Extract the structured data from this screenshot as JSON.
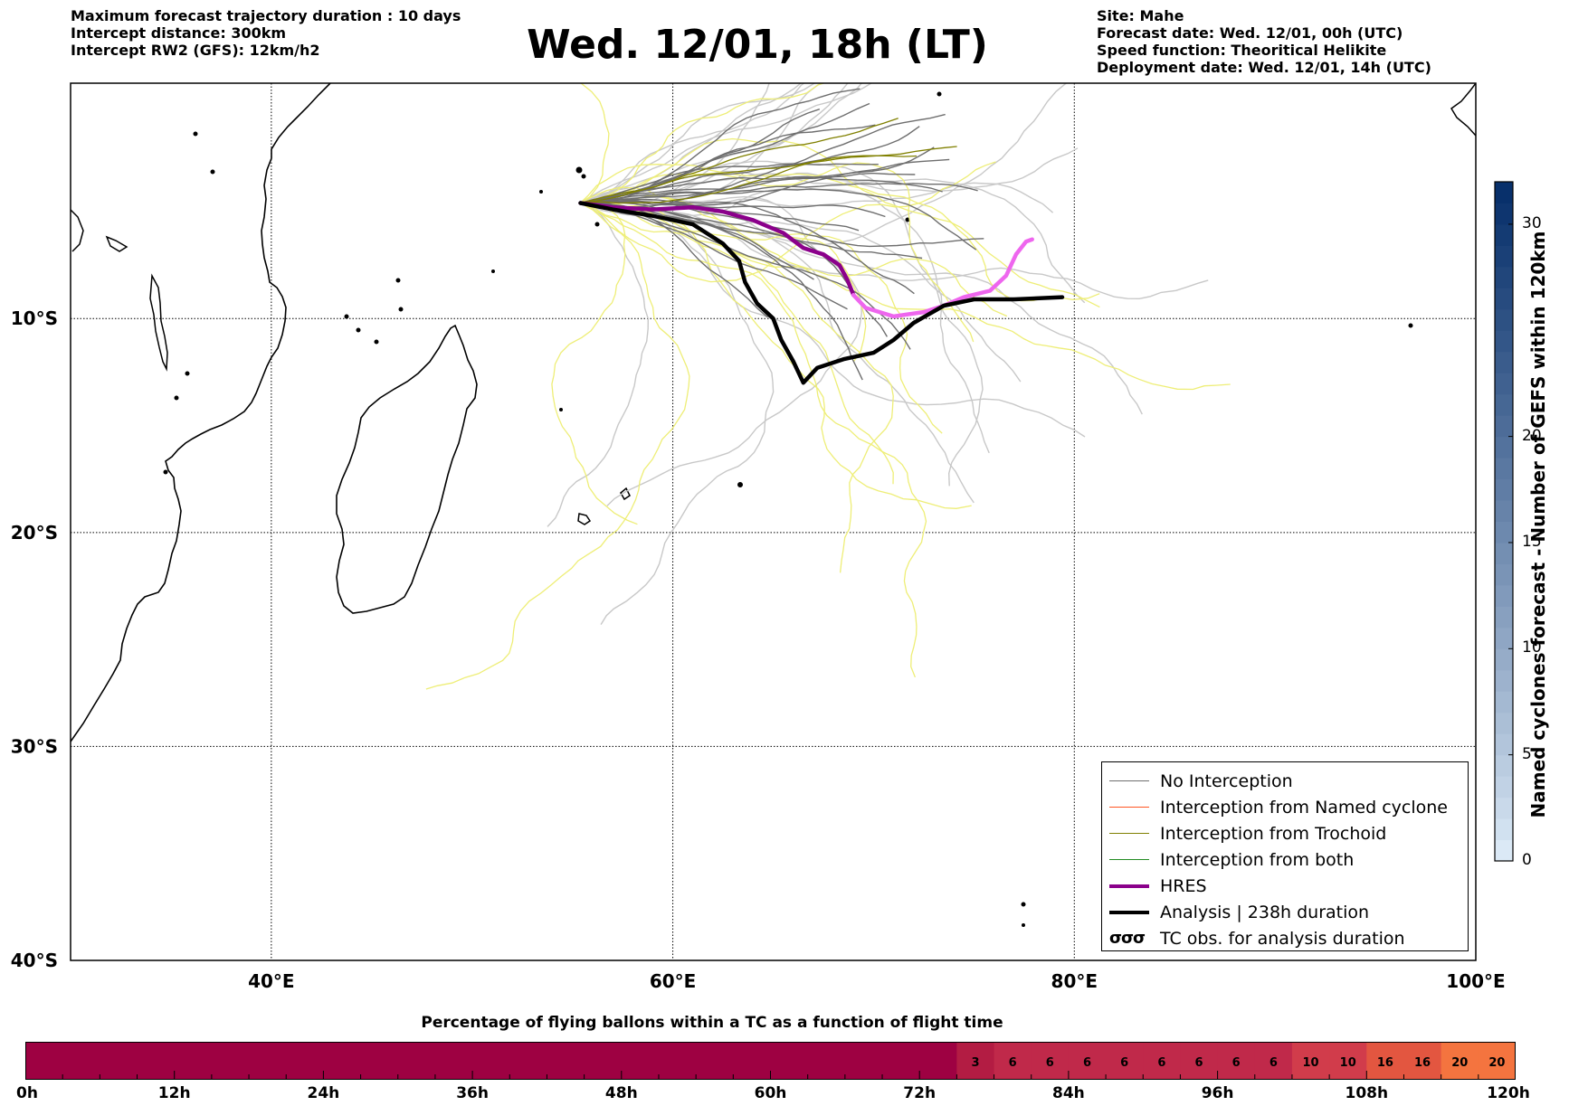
{
  "header_left": [
    "Maximum forecast trajectory duration : 10 days",
    "Intercept distance: 300km",
    "Intercept RW2 (GFS):  12km/h2"
  ],
  "title": "Wed. 12/01, 18h (LT)",
  "header_right": [
    "Site: Mahe",
    "Forecast date: Wed. 12/01, 00h (UTC)",
    "Speed function: Theoritical Helikite",
    "Deployment date: Wed. 12/01, 14h (UTC)"
  ],
  "map": {
    "lon_range": [
      30,
      100
    ],
    "lat_range": [
      -40,
      1
    ],
    "lat_labels": [
      {
        "lat": -10,
        "text": "10°S"
      },
      {
        "lat": -20,
        "text": "20°S"
      },
      {
        "lat": -30,
        "text": "30°S"
      },
      {
        "lat": -40,
        "text": "40°S"
      }
    ],
    "lon_labels": [
      {
        "lon": 40,
        "text": "40°E"
      },
      {
        "lon": 60,
        "text": "60°E"
      },
      {
        "lon": 80,
        "text": "80°E"
      },
      {
        "lon": 100,
        "text": "100°E"
      }
    ],
    "gridlines": "dotted",
    "launch_point": [
      55.4,
      -4.6
    ],
    "colors": {
      "no_interception": "#6e6e6e",
      "no_interception_light": "#c8c8c8",
      "named_cyclone": "#ff5522",
      "trochoid": "#808000",
      "both": "#228b22",
      "hres": "#8b008b",
      "hres_late": "#ee66ee",
      "analysis": "#000000",
      "trochoid_light": "#eeee77"
    },
    "analysis_track": [
      [
        55.4,
        -4.6
      ],
      [
        57,
        -4.9
      ],
      [
        59,
        -5.2
      ],
      [
        61,
        -5.6
      ],
      [
        62.5,
        -6.5
      ],
      [
        63.3,
        -7.3
      ],
      [
        63.6,
        -8.3
      ],
      [
        64.2,
        -9.3
      ],
      [
        65,
        -10
      ],
      [
        65.4,
        -11
      ],
      [
        66,
        -12
      ],
      [
        66.5,
        -13
      ],
      [
        67.2,
        -12.3
      ],
      [
        68.5,
        -11.9
      ],
      [
        70,
        -11.6
      ],
      [
        71,
        -11
      ],
      [
        72,
        -10.2
      ],
      [
        73.5,
        -9.4
      ],
      [
        75,
        -9.1
      ],
      [
        77,
        -9.1
      ],
      [
        79.4,
        -9
      ]
    ],
    "hres_track": [
      [
        55.4,
        -4.6
      ],
      [
        57,
        -4.8
      ],
      [
        59,
        -4.9
      ],
      [
        61,
        -4.8
      ],
      [
        62.5,
        -5
      ],
      [
        64,
        -5.4
      ],
      [
        65.5,
        -6
      ],
      [
        66.5,
        -6.7
      ],
      [
        67.5,
        -7
      ],
      [
        68.3,
        -7.5
      ],
      [
        68.7,
        -8.2
      ],
      [
        69,
        -8.9
      ],
      [
        69.6,
        -9.5
      ],
      [
        71,
        -9.9
      ],
      [
        72.5,
        -9.7
      ],
      [
        73.5,
        -9.4
      ],
      [
        74.5,
        -9
      ],
      [
        75.8,
        -8.7
      ],
      [
        76.6,
        -8
      ],
      [
        77.1,
        -7
      ],
      [
        77.6,
        -6.4
      ],
      [
        77.9,
        -6.3
      ]
    ],
    "legend": [
      {
        "label": "No Interception",
        "kind": "thin",
        "color": "#6e6e6e"
      },
      {
        "label": "Interception from Named cyclone",
        "kind": "thin",
        "color": "#ff5522"
      },
      {
        "label": "Interception from Trochoid",
        "kind": "thin",
        "color": "#808000"
      },
      {
        "label": "Interception from both",
        "kind": "thin",
        "color": "#228b22"
      },
      {
        "label": "HRES",
        "kind": "thick",
        "color": "#8b008b"
      },
      {
        "label": "Analysis | 238h duration",
        "kind": "thick",
        "color": "#000000"
      },
      {
        "label": "TC obs. for analysis duration",
        "kind": "tc",
        "symbol": "σσσ"
      }
    ]
  },
  "colorbar": {
    "title": "Named cyclones forecast - Number of GEFS within 120km",
    "range": [
      0,
      32
    ],
    "ticks": [
      0,
      5,
      10,
      15,
      20,
      30
    ],
    "color_low": "#dbe9f6",
    "color_high": "#08306b"
  },
  "bottom_bar": {
    "title": "Percentage of flying ballons within a TC as a function of flight time",
    "hour_labels": [
      "0h",
      "12h",
      "24h",
      "36h",
      "48h",
      "60h",
      "72h",
      "84h",
      "96h",
      "108h",
      "120h"
    ],
    "max_hours": 120,
    "step_hours": 3,
    "segments": [
      {
        "start_h": 0,
        "end_h": 75,
        "value": "",
        "color": "#9e0142"
      },
      {
        "start_h": 75,
        "end_h": 78,
        "value": "3",
        "color": "#b31c43"
      },
      {
        "start_h": 78,
        "end_h": 81,
        "value": "6",
        "color": "#c0294a"
      },
      {
        "start_h": 81,
        "end_h": 84,
        "value": "6",
        "color": "#c0294a"
      },
      {
        "start_h": 84,
        "end_h": 87,
        "value": "6",
        "color": "#c0294a"
      },
      {
        "start_h": 87,
        "end_h": 90,
        "value": "6",
        "color": "#c0294a"
      },
      {
        "start_h": 90,
        "end_h": 93,
        "value": "6",
        "color": "#c0294a"
      },
      {
        "start_h": 93,
        "end_h": 96,
        "value": "6",
        "color": "#c0294a"
      },
      {
        "start_h": 96,
        "end_h": 99,
        "value": "6",
        "color": "#c0294a"
      },
      {
        "start_h": 99,
        "end_h": 102,
        "value": "6",
        "color": "#c0294a"
      },
      {
        "start_h": 102,
        "end_h": 105,
        "value": "10",
        "color": "#d13c4b"
      },
      {
        "start_h": 105,
        "end_h": 108,
        "value": "10",
        "color": "#d13c4b"
      },
      {
        "start_h": 108,
        "end_h": 111,
        "value": "16",
        "color": "#e35640"
      },
      {
        "start_h": 111,
        "end_h": 114,
        "value": "16",
        "color": "#e35640"
      },
      {
        "start_h": 114,
        "end_h": 117,
        "value": "20",
        "color": "#f4743f"
      },
      {
        "start_h": 117,
        "end_h": 120,
        "value": "20",
        "color": "#f4743f"
      }
    ]
  }
}
